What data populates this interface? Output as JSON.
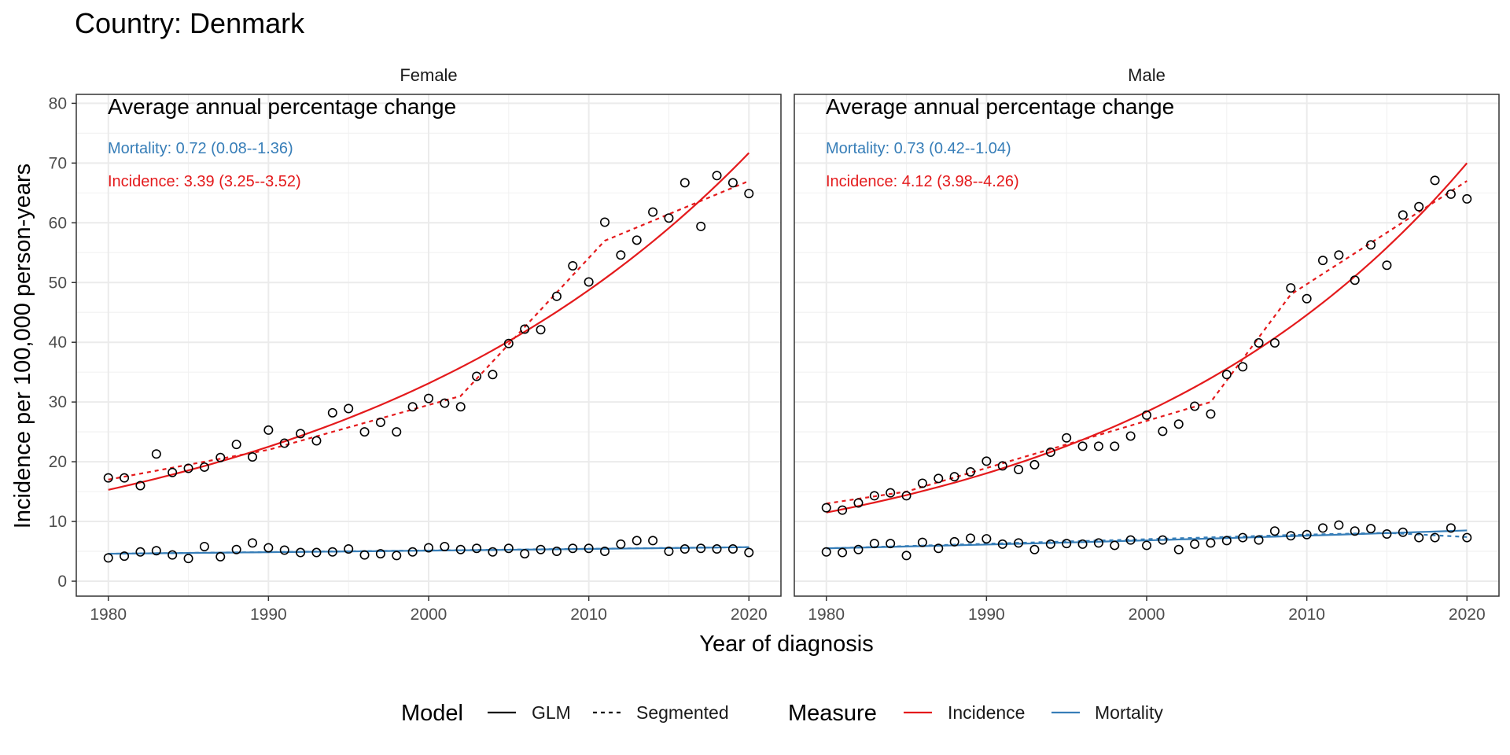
{
  "title": "Country: Denmark",
  "colors": {
    "incidence": "#E41A1C",
    "mortality": "#377EB8"
  },
  "chart_data": {
    "type": "scatter",
    "xlabel": "Year of diagnosis",
    "ylabel": "Incidence per 100,000 person-years",
    "xlim": [
      1978,
      2022
    ],
    "ylim": [
      -2.5,
      81.5
    ],
    "xticks": [
      1980,
      1990,
      2000,
      2010,
      2020
    ],
    "yticks": [
      0,
      10,
      20,
      30,
      40,
      50,
      60,
      70,
      80
    ],
    "grid": true,
    "legend_position": "bottom",
    "legend": {
      "model_title": "Model",
      "model_items": [
        {
          "label": "GLM",
          "linetype": "solid"
        },
        {
          "label": "Segmented",
          "linetype": "dashed"
        }
      ],
      "measure_title": "Measure",
      "measure_items": [
        {
          "label": "Incidence",
          "color": "#E41A1C"
        },
        {
          "label": "Mortality",
          "color": "#377EB8"
        }
      ]
    },
    "years": [
      1980,
      1981,
      1982,
      1983,
      1984,
      1985,
      1986,
      1987,
      1988,
      1989,
      1990,
      1991,
      1992,
      1993,
      1994,
      1995,
      1996,
      1997,
      1998,
      1999,
      2000,
      2001,
      2002,
      2003,
      2004,
      2005,
      2006,
      2007,
      2008,
      2009,
      2010,
      2011,
      2012,
      2013,
      2014,
      2015,
      2016,
      2017,
      2018,
      2019,
      2020
    ],
    "panels": [
      {
        "strip": "Female",
        "annotation": {
          "title": "Average annual percentage change",
          "mortality": "Mortality: 0.72 (0.08--1.36)",
          "incidence": "Incidence: 3.39 (3.25--3.52)"
        },
        "incidence_observed": [
          17.3,
          17.3,
          16.0,
          21.3,
          18.2,
          18.9,
          19.1,
          20.7,
          22.9,
          20.8,
          25.3,
          23.1,
          24.7,
          23.5,
          28.2,
          28.9,
          25.0,
          26.6,
          25.0,
          29.2,
          30.6,
          29.8,
          29.2,
          34.3,
          34.6,
          39.8,
          42.2,
          42.1,
          47.7,
          52.8,
          50.1,
          60.1,
          54.6,
          57.1,
          61.8,
          60.8,
          66.7,
          59.4,
          67.9,
          66.7,
          64.9
        ],
        "mortality_observed": [
          3.9,
          4.2,
          4.9,
          5.1,
          4.4,
          3.8,
          5.8,
          4.1,
          5.3,
          6.4,
          5.6,
          5.2,
          4.8,
          4.8,
          4.9,
          5.4,
          4.4,
          4.6,
          4.3,
          4.9,
          5.6,
          5.8,
          5.3,
          5.5,
          4.9,
          5.5,
          4.6,
          5.3,
          5.0,
          5.5,
          5.5,
          5.0,
          6.2,
          6.8,
          6.8,
          5.0,
          5.4,
          5.5,
          5.4,
          5.4,
          4.8
        ],
        "incidence_glm": {
          "start": 15.3,
          "end": 71.7,
          "aapc": 3.39
        },
        "incidence_segmented": [
          [
            1980,
            17.0
          ],
          [
            1990,
            22.0
          ],
          [
            2002,
            31.0
          ],
          [
            2011,
            57.0
          ],
          [
            2020,
            67.0
          ]
        ],
        "mortality_glm": {
          "start": 4.6,
          "end": 5.7,
          "aapc": 0.72
        },
        "mortality_segmented": [
          [
            1980,
            4.6
          ],
          [
            2020,
            5.7
          ]
        ]
      },
      {
        "strip": "Male",
        "annotation": {
          "title": "Average annual percentage change",
          "mortality": "Mortality: 0.73 (0.42--1.04)",
          "incidence": "Incidence: 4.12 (3.98--4.26)"
        },
        "incidence_observed": [
          12.3,
          11.9,
          13.1,
          14.3,
          14.8,
          14.3,
          16.4,
          17.2,
          17.5,
          18.3,
          20.1,
          19.3,
          18.7,
          19.5,
          21.6,
          24.0,
          22.6,
          22.6,
          22.6,
          24.3,
          27.8,
          25.1,
          26.3,
          29.3,
          28.0,
          34.6,
          35.9,
          39.9,
          39.9,
          49.1,
          47.3,
          53.7,
          54.6,
          50.4,
          56.3,
          52.9,
          61.3,
          62.7,
          67.1,
          64.8,
          64.0
        ],
        "mortality_observed": [
          4.9,
          4.8,
          5.3,
          6.3,
          6.3,
          4.3,
          6.5,
          5.5,
          6.6,
          7.2,
          7.1,
          6.2,
          6.4,
          5.3,
          6.2,
          6.3,
          6.2,
          6.4,
          6.0,
          6.9,
          6.0,
          6.9,
          5.3,
          6.2,
          6.4,
          6.8,
          7.3,
          6.9,
          8.4,
          7.6,
          7.8,
          8.9,
          9.4,
          8.4,
          8.8,
          7.9,
          8.2,
          7.3,
          7.3,
          8.9,
          7.3
        ],
        "incidence_glm": {
          "start": 11.5,
          "end": 70.0,
          "aapc": 4.12
        },
        "incidence_segmented": [
          [
            1980,
            13.0
          ],
          [
            1985,
            15.0
          ],
          [
            2004,
            30.0
          ],
          [
            2009,
            48.0
          ],
          [
            2020,
            67.0
          ]
        ],
        "mortality_glm": {
          "start": 5.5,
          "end": 8.5,
          "aapc": 0.73
        },
        "mortality_segmented": [
          [
            1980,
            5.5
          ],
          [
            2010,
            7.8
          ],
          [
            2015,
            8.1
          ],
          [
            2020,
            7.4
          ]
        ]
      }
    ]
  }
}
